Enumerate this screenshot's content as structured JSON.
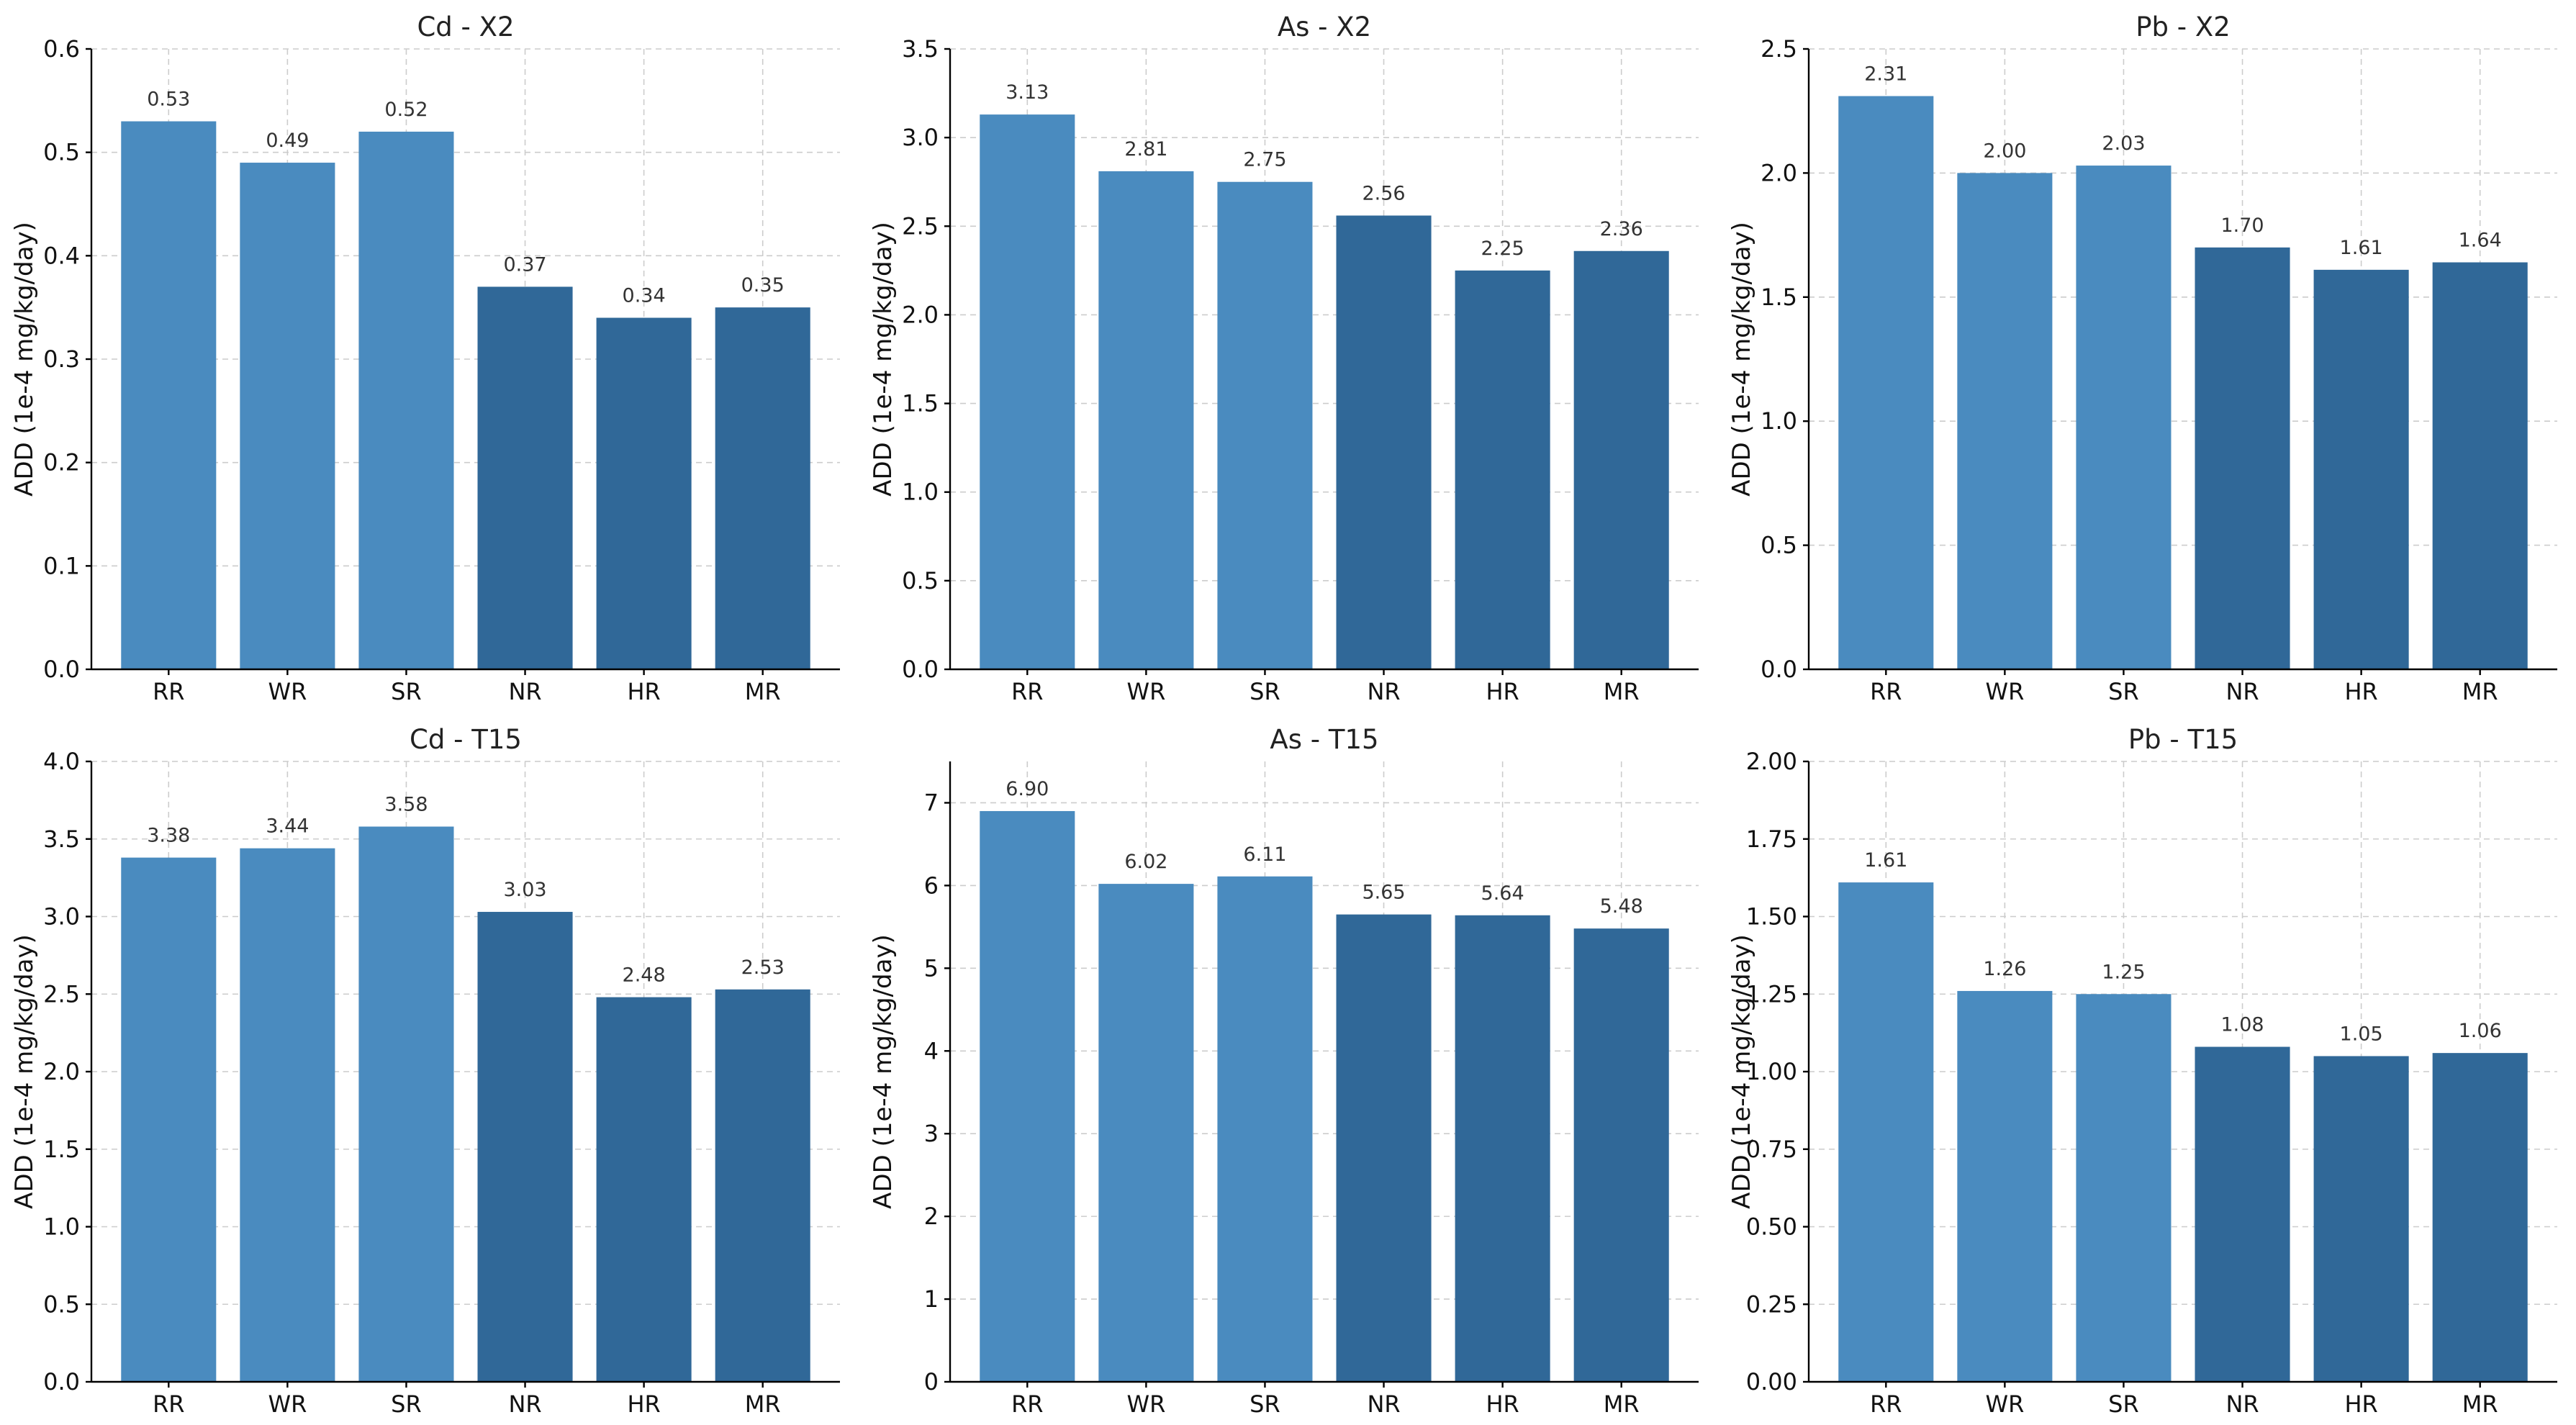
{
  "colors": {
    "accent_light": "#4a8bbf",
    "accent_dark": "#306898",
    "grid": "#cccccc"
  },
  "chart_data": [
    {
      "type": "bar",
      "title": "Cd - X2",
      "ylabel": "ADD (1e-4 mg/kg/day)",
      "xlabel": "",
      "categories": [
        "RR",
        "WR",
        "SR",
        "NR",
        "HR",
        "MR"
      ],
      "values": [
        0.53,
        0.49,
        0.52,
        0.37,
        0.34,
        0.35
      ],
      "value_labels": [
        "0.53",
        "0.49",
        "0.52",
        "0.37",
        "0.34",
        "0.35"
      ],
      "bar_colors": [
        "#4a8bbf",
        "#4a8bbf",
        "#4a8bbf",
        "#306898",
        "#306898",
        "#306898"
      ],
      "ylim": [
        0,
        0.6
      ],
      "yticks": [
        0,
        0.1,
        0.2,
        0.3,
        0.4,
        0.5,
        0.6
      ],
      "ytick_labels": [
        "0.0",
        "0.1",
        "0.2",
        "0.3",
        "0.4",
        "0.5",
        "0.6"
      ],
      "grid": true
    },
    {
      "type": "bar",
      "title": "As - X2",
      "ylabel": "ADD (1e-4 mg/kg/day)",
      "xlabel": "",
      "categories": [
        "RR",
        "WR",
        "SR",
        "NR",
        "HR",
        "MR"
      ],
      "values": [
        3.13,
        2.81,
        2.75,
        2.56,
        2.25,
        2.36
      ],
      "value_labels": [
        "3.13",
        "2.81",
        "2.75",
        "2.56",
        "2.25",
        "2.36"
      ],
      "bar_colors": [
        "#4a8bbf",
        "#4a8bbf",
        "#4a8bbf",
        "#306898",
        "#306898",
        "#306898"
      ],
      "ylim": [
        0,
        3.5
      ],
      "yticks": [
        0,
        0.5,
        1,
        1.5,
        2,
        2.5,
        3,
        3.5
      ],
      "ytick_labels": [
        "0.0",
        "0.5",
        "1.0",
        "1.5",
        "2.0",
        "2.5",
        "3.0",
        "3.5"
      ],
      "grid": true
    },
    {
      "type": "bar",
      "title": "Pb - X2",
      "ylabel": "ADD (1e-4 mg/kg/day)",
      "xlabel": "",
      "categories": [
        "RR",
        "WR",
        "SR",
        "NR",
        "HR",
        "MR"
      ],
      "values": [
        2.31,
        2.0,
        2.03,
        1.7,
        1.61,
        1.64
      ],
      "value_labels": [
        "2.31",
        "2.00",
        "2.03",
        "1.70",
        "1.61",
        "1.64"
      ],
      "bar_colors": [
        "#4a8bbf",
        "#4a8bbf",
        "#4a8bbf",
        "#306898",
        "#306898",
        "#306898"
      ],
      "ylim": [
        0,
        2.5
      ],
      "yticks": [
        0,
        0.5,
        1,
        1.5,
        2,
        2.5
      ],
      "ytick_labels": [
        "0.0",
        "0.5",
        "1.0",
        "1.5",
        "2.0",
        "2.5"
      ],
      "grid": true
    },
    {
      "type": "bar",
      "title": "Cd - T15",
      "ylabel": "ADD (1e-4 mg/kg/day)",
      "xlabel": "",
      "categories": [
        "RR",
        "WR",
        "SR",
        "NR",
        "HR",
        "MR"
      ],
      "values": [
        3.38,
        3.44,
        3.58,
        3.03,
        2.48,
        2.53
      ],
      "value_labels": [
        "3.38",
        "3.44",
        "3.58",
        "3.03",
        "2.48",
        "2.53"
      ],
      "bar_colors": [
        "#4a8bbf",
        "#4a8bbf",
        "#4a8bbf",
        "#306898",
        "#306898",
        "#306898"
      ],
      "ylim": [
        0,
        4.0
      ],
      "yticks": [
        0,
        0.5,
        1,
        1.5,
        2,
        2.5,
        3,
        3.5,
        4
      ],
      "ytick_labels": [
        "0.0",
        "0.5",
        "1.0",
        "1.5",
        "2.0",
        "2.5",
        "3.0",
        "3.5",
        "4.0"
      ],
      "grid": true
    },
    {
      "type": "bar",
      "title": "As - T15",
      "ylabel": "ADD (1e-4 mg/kg/day)",
      "xlabel": "",
      "categories": [
        "RR",
        "WR",
        "SR",
        "NR",
        "HR",
        "MR"
      ],
      "values": [
        6.9,
        6.02,
        6.11,
        5.65,
        5.64,
        5.48
      ],
      "value_labels": [
        "6.90",
        "6.02",
        "6.11",
        "5.65",
        "5.64",
        "5.48"
      ],
      "bar_colors": [
        "#4a8bbf",
        "#4a8bbf",
        "#4a8bbf",
        "#306898",
        "#306898",
        "#306898"
      ],
      "ylim": [
        0,
        7.5
      ],
      "yticks": [
        0,
        1,
        2,
        3,
        4,
        5,
        6,
        7
      ],
      "ytick_labels": [
        "0",
        "1",
        "2",
        "3",
        "4",
        "5",
        "6",
        "7"
      ],
      "grid": true
    },
    {
      "type": "bar",
      "title": "Pb - T15",
      "ylabel": "ADD (1e-4 mg/kg/day)",
      "xlabel": "",
      "categories": [
        "RR",
        "WR",
        "SR",
        "NR",
        "HR",
        "MR"
      ],
      "values": [
        1.61,
        1.26,
        1.25,
        1.08,
        1.05,
        1.06
      ],
      "value_labels": [
        "1.61",
        "1.26",
        "1.25",
        "1.08",
        "1.05",
        "1.06"
      ],
      "bar_colors": [
        "#4a8bbf",
        "#4a8bbf",
        "#4a8bbf",
        "#306898",
        "#306898",
        "#306898"
      ],
      "ylim": [
        0,
        2.0
      ],
      "yticks": [
        0,
        0.25,
        0.5,
        0.75,
        1,
        1.25,
        1.5,
        1.75,
        2
      ],
      "ytick_labels": [
        "0.00",
        "0.25",
        "0.50",
        "0.75",
        "1.00",
        "1.25",
        "1.50",
        "1.75",
        "2.00"
      ],
      "grid": true
    }
  ]
}
